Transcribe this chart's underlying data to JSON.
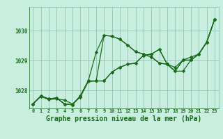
{
  "background_color": "#c8eee0",
  "grid_color": "#88bbaa",
  "line_color": "#1a6b1a",
  "xlabel": "Graphe pression niveau de la mer (hPa)",
  "xlabel_fontsize": 7,
  "ylim": [
    1027.4,
    1030.8
  ],
  "xlim": [
    -0.5,
    23.5
  ],
  "series": [
    [
      1027.55,
      1027.8,
      1027.7,
      1027.72,
      1027.68,
      1027.55,
      1027.78,
      1028.3,
      1028.32,
      1028.32,
      1028.62,
      1028.78,
      1028.88,
      1028.92,
      1029.18,
      1029.22,
      1029.38,
      1028.88,
      1028.78,
      1029.02,
      1029.12,
      1029.22,
      1029.62,
      1030.38
    ],
    [
      1027.55,
      1027.82,
      1027.72,
      1027.75,
      1027.55,
      1027.52,
      1027.82,
      1028.32,
      1028.32,
      1029.85,
      1029.82,
      1029.72,
      1029.52,
      1029.3,
      1029.22,
      1029.12,
      1028.92,
      1028.88,
      1028.65,
      1029.02,
      1029.02,
      1029.22,
      1029.62,
      1030.38
    ],
    [
      1027.55,
      1027.82,
      1027.72,
      1027.75,
      1027.55,
      1027.52,
      1027.82,
      1028.32,
      1029.28,
      1029.85,
      1029.82,
      1029.72,
      1029.52,
      1029.3,
      1029.22,
      1029.12,
      1028.92,
      1028.88,
      1028.65,
      1029.02,
      1029.02,
      1029.22,
      1029.62,
      1030.38
    ],
    [
      1027.55,
      1027.82,
      1027.72,
      1027.75,
      1027.55,
      1027.52,
      1027.82,
      1028.32,
      1028.32,
      1028.32,
      1028.62,
      1028.78,
      1028.88,
      1028.92,
      1029.18,
      1029.22,
      1029.38,
      1028.88,
      1028.65,
      1028.65,
      1029.02,
      1029.22,
      1029.62,
      1030.38
    ]
  ],
  "yticks": [
    1028,
    1029,
    1030
  ],
  "xtick_labels": [
    "0",
    "1",
    "2",
    "3",
    "4",
    "5",
    "6",
    "7",
    "8",
    "9",
    "10",
    "11",
    "12",
    "13",
    "14",
    "15",
    "16",
    "17",
    "18",
    "19",
    "20",
    "21",
    "22",
    "23"
  ]
}
